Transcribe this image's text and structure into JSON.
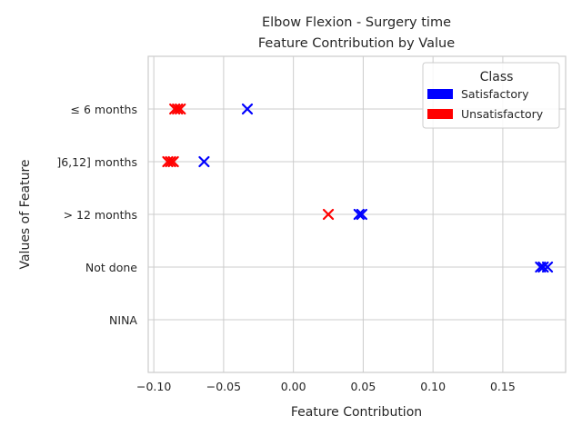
{
  "chart_data": {
    "type": "scatter",
    "title_lines": [
      "Elbow Flexion - Surgery time",
      "Feature Contribution by Value"
    ],
    "xlabel": "Feature Contribution",
    "ylabel": "Values of Feature",
    "xlim": [
      -0.104,
      0.195
    ],
    "x_ticks": [
      -0.1,
      -0.05,
      0.0,
      0.05,
      0.1,
      0.15
    ],
    "x_tick_labels": [
      "−0.10",
      "−0.05",
      "0.00",
      "0.05",
      "0.10",
      "0.15"
    ],
    "categories": [
      "≤ 6 months",
      "]6,12] months",
      "> 12 months",
      "Not done",
      "NINA"
    ],
    "grid": true,
    "marker": "x",
    "legend": {
      "title": "Class",
      "placement": "upper-right",
      "entries": [
        {
          "label": "Satisfactory",
          "color": "#0000ff"
        },
        {
          "label": "Unsatisfactory",
          "color": "#ff0000"
        }
      ]
    },
    "series": [
      {
        "name": "Satisfactory",
        "color": "#0000ff",
        "points": [
          {
            "category": "≤ 6 months",
            "x": -0.033
          },
          {
            "category": "]6,12] months",
            "x": -0.064
          },
          {
            "category": "> 12 months",
            "x": 0.047
          },
          {
            "category": "> 12 months",
            "x": 0.049
          },
          {
            "category": "Not done",
            "x": 0.177
          },
          {
            "category": "Not done",
            "x": 0.179
          },
          {
            "category": "Not done",
            "x": 0.182
          }
        ]
      },
      {
        "name": "Unsatisfactory",
        "color": "#ff0000",
        "points": [
          {
            "category": "≤ 6 months",
            "x": -0.085
          },
          {
            "category": "≤ 6 months",
            "x": -0.083
          },
          {
            "category": "≤ 6 months",
            "x": -0.081
          },
          {
            "category": "]6,12] months",
            "x": -0.09
          },
          {
            "category": "]6,12] months",
            "x": -0.088
          },
          {
            "category": "]6,12] months",
            "x": -0.086
          },
          {
            "category": "> 12 months",
            "x": 0.025
          }
        ]
      }
    ]
  }
}
